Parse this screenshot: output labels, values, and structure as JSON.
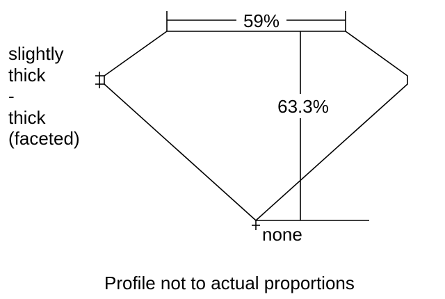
{
  "labels": {
    "table": "59%",
    "depth": "63.3%",
    "culet": "none",
    "girdle": [
      "slightly",
      "thick",
      "-",
      "thick",
      "(faceted)"
    ]
  },
  "caption": "Profile not to actual proportions",
  "colors": {
    "stroke": "#000000",
    "background": "#ffffff"
  }
}
